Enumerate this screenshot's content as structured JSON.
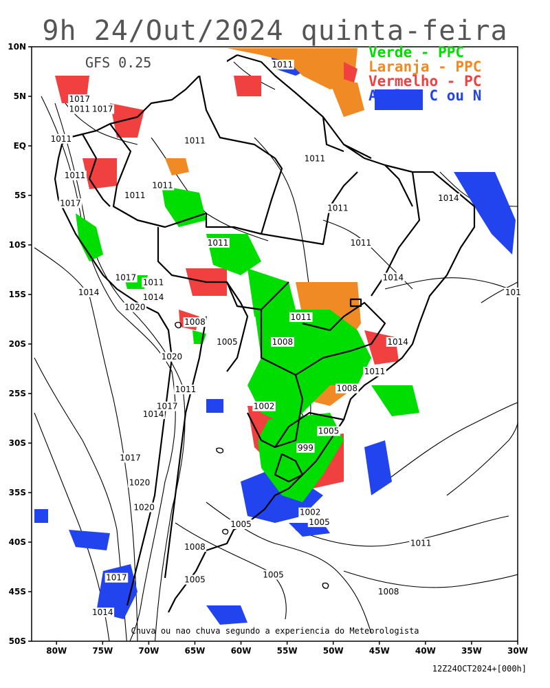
{
  "title": "9h 24/Out/2024 quinta-feira",
  "model_label": "GFS 0.25",
  "legend": [
    {
      "label": "Verde - PPC",
      "color": "#00dd00"
    },
    {
      "label": "Laranja - PPC",
      "color": "#f08a24"
    },
    {
      "label": "Vermelho - PC",
      "color": "#f04040"
    },
    {
      "label": "Azul - C ou N",
      "color": "#2244ee"
    }
  ],
  "y_ticks": [
    "10N",
    "5N",
    "EQ",
    "5S",
    "10S",
    "15S",
    "20S",
    "25S",
    "30S",
    "35S",
    "40S",
    "45S",
    "50S"
  ],
  "x_ticks": [
    "80W",
    "75W",
    "70W",
    "65W",
    "60W",
    "55W",
    "50W",
    "45W",
    "40W",
    "35W",
    "30W"
  ],
  "isobar_labels": [
    {
      "text": "1011",
      "lon": -55.5,
      "lat": 8.0
    },
    {
      "text": "1017",
      "lon": -77.5,
      "lat": 4.5
    },
    {
      "text": "1011",
      "lon": -77.5,
      "lat": 3.5
    },
    {
      "text": "1017",
      "lon": -75.0,
      "lat": 3.5
    },
    {
      "text": "1011",
      "lon": -79.5,
      "lat": 0.5
    },
    {
      "text": "1011",
      "lon": -65.0,
      "lat": 0.3
    },
    {
      "text": "1011",
      "lon": -52.0,
      "lat": -1.5
    },
    {
      "text": "1011",
      "lon": -78.0,
      "lat": -3.2
    },
    {
      "text": "1011",
      "lon": -68.5,
      "lat": -4.2
    },
    {
      "text": "1011",
      "lon": -71.5,
      "lat": -5.2
    },
    {
      "text": "1017",
      "lon": -78.5,
      "lat": -6.0
    },
    {
      "text": "1011",
      "lon": -49.5,
      "lat": -6.5
    },
    {
      "text": "1014",
      "lon": -37.5,
      "lat": -5.5
    },
    {
      "text": "1011",
      "lon": -62.5,
      "lat": -10.0
    },
    {
      "text": "1011",
      "lon": -47.0,
      "lat": -10.0
    },
    {
      "text": "1017",
      "lon": -72.5,
      "lat": -13.5
    },
    {
      "text": "1011",
      "lon": -69.5,
      "lat": -14.0
    },
    {
      "text": "1014",
      "lon": -43.5,
      "lat": -13.5
    },
    {
      "text": "1014",
      "lon": -76.5,
      "lat": -15.0
    },
    {
      "text": "1014",
      "lon": -69.5,
      "lat": -15.5
    },
    {
      "text": "1020",
      "lon": -71.5,
      "lat": -16.5
    },
    {
      "text": "1011",
      "lon": -53.5,
      "lat": -17.5
    },
    {
      "text": "1008",
      "lon": -65.0,
      "lat": -18.0
    },
    {
      "text": "1005",
      "lon": -61.5,
      "lat": -20.0
    },
    {
      "text": "1008",
      "lon": -55.5,
      "lat": -20.0
    },
    {
      "text": "1014",
      "lon": -43.0,
      "lat": -20.0
    },
    {
      "text": "1020",
      "lon": -67.5,
      "lat": -21.5
    },
    {
      "text": "1011",
      "lon": -45.5,
      "lat": -23.0
    },
    {
      "text": "1011",
      "lon": -66.0,
      "lat": -24.8
    },
    {
      "text": "1008",
      "lon": -48.5,
      "lat": -24.7
    },
    {
      "text": "1017",
      "lon": -68.0,
      "lat": -26.5
    },
    {
      "text": "1014",
      "lon": -69.5,
      "lat": -27.3
    },
    {
      "text": "1002",
      "lon": -57.5,
      "lat": -26.5
    },
    {
      "text": "1005",
      "lon": -50.5,
      "lat": -29.0
    },
    {
      "text": "999",
      "lon": -53.0,
      "lat": -30.7
    },
    {
      "text": "1017",
      "lon": -72.0,
      "lat": -31.7
    },
    {
      "text": "1020",
      "lon": -71.0,
      "lat": -34.2
    },
    {
      "text": "1020",
      "lon": -70.5,
      "lat": -36.7
    },
    {
      "text": "1002",
      "lon": -52.5,
      "lat": -37.2
    },
    {
      "text": "1005",
      "lon": -51.5,
      "lat": -38.2
    },
    {
      "text": "1005",
      "lon": -60.0,
      "lat": -38.4
    },
    {
      "text": "1008",
      "lon": -65.0,
      "lat": -40.7
    },
    {
      "text": "1011",
      "lon": -40.5,
      "lat": -40.3
    },
    {
      "text": "1005",
      "lon": -56.5,
      "lat": -43.5
    },
    {
      "text": "1017",
      "lon": -73.5,
      "lat": -43.8
    },
    {
      "text": "1005",
      "lon": -65.0,
      "lat": -44.0
    },
    {
      "text": "1008",
      "lon": -44.0,
      "lat": -45.2
    },
    {
      "text": "1014",
      "lon": -75.0,
      "lat": -47.3
    },
    {
      "text": "101",
      "lon": -30.5,
      "lat": -15.0
    }
  ],
  "caption": "Chuva ou nao chuva segundo a experiencia do Meteorologista",
  "stamp": "12Z24OCT2024+[000h]"
}
